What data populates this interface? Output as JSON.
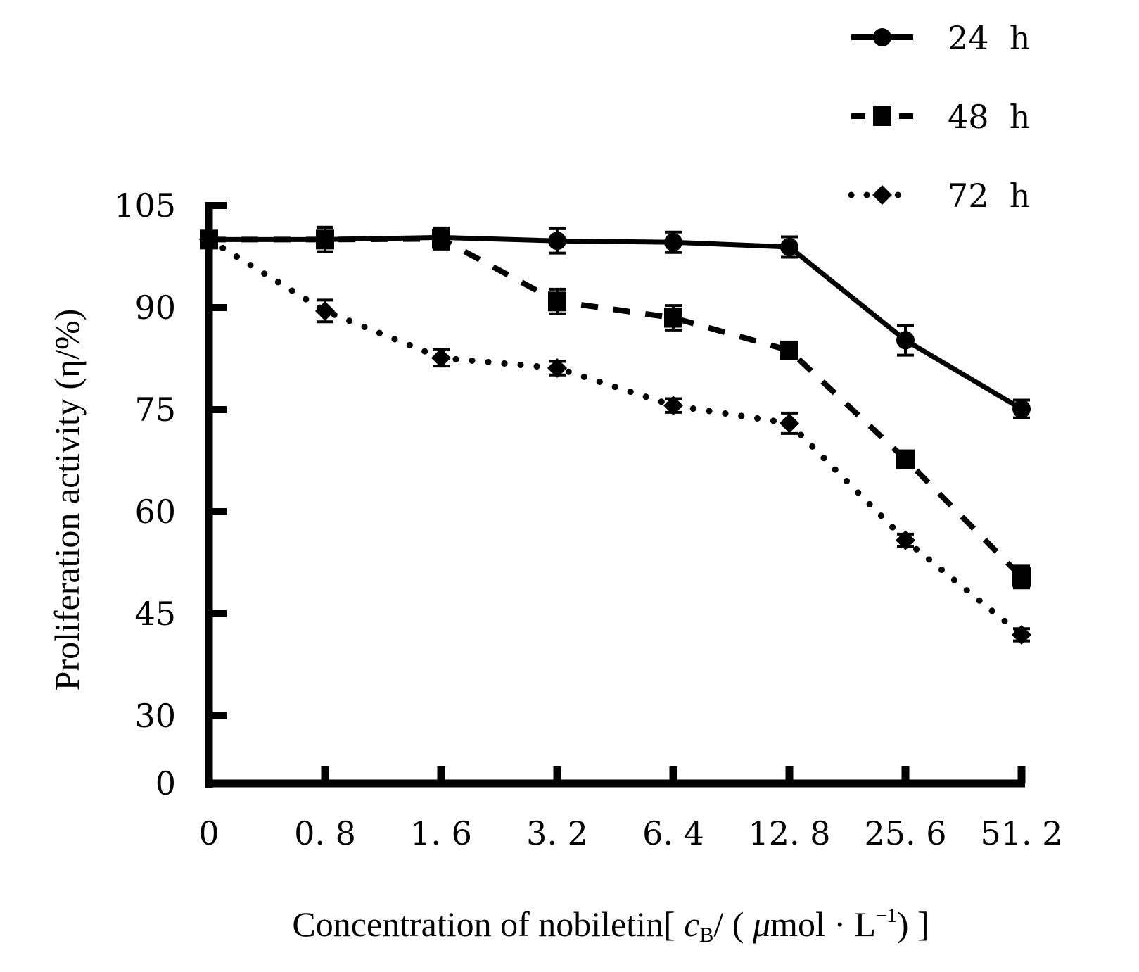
{
  "chart_data": {
    "type": "line",
    "title": "",
    "xlabel": "Concentration of nobiletin[ cB/ ( μmol · L⁻¹) ]",
    "xlabel_parts": {
      "prefix": "Concentration of nobiletin[ ",
      "symbol": "c",
      "subscript": "B",
      "mid": "/ ( ",
      "mu": "μ",
      "unit": "mol · L",
      "superscript": "−1",
      "suffix": ") ]"
    },
    "ylabel": "Proliferation activity (η/%)",
    "x_tick_labels": [
      "0",
      "0. 8",
      "1. 6",
      "3. 2",
      "6. 4",
      "12. 8",
      "25. 6",
      "51. 2"
    ],
    "categories": [
      "0",
      "0.8",
      "1.6",
      "3.2",
      "6.4",
      "12.8",
      "25.6",
      "51.2"
    ],
    "y_ticks": [
      0,
      30,
      45,
      60,
      75,
      90,
      105
    ],
    "y_tick_labels": [
      "0",
      "30",
      "45",
      "60",
      "75",
      "90",
      "105"
    ],
    "ylim": [
      0,
      105
    ],
    "y_axis_break": "between 0 and 30",
    "grid": false,
    "legend_position": "top-right",
    "series": [
      {
        "name": "24 h",
        "marker": "circle",
        "line_style": "solid",
        "values": [
          100.0,
          100.0,
          100.3,
          99.8,
          99.6,
          98.9,
          85.2,
          75.1
        ],
        "error": [
          1.5,
          1.8,
          1.4,
          1.8,
          1.5,
          1.5,
          2.2,
          1.3
        ]
      },
      {
        "name": "48 h",
        "marker": "square",
        "line_style": "dashed",
        "values": [
          100.0,
          100.0,
          100.1,
          90.9,
          88.5,
          83.7,
          67.7,
          50.4
        ],
        "error": [
          1.5,
          1.8,
          1.5,
          1.8,
          1.8,
          1.0,
          1.0,
          1.6
        ]
      },
      {
        "name": "72 h",
        "marker": "diamond",
        "line_style": "dotted",
        "values": [
          100.0,
          89.5,
          82.6,
          81.1,
          75.6,
          73.0,
          55.8,
          41.9
        ],
        "error": [
          1.0,
          1.6,
          1.2,
          1.0,
          1.0,
          1.5,
          0.9,
          0.9
        ]
      }
    ]
  }
}
